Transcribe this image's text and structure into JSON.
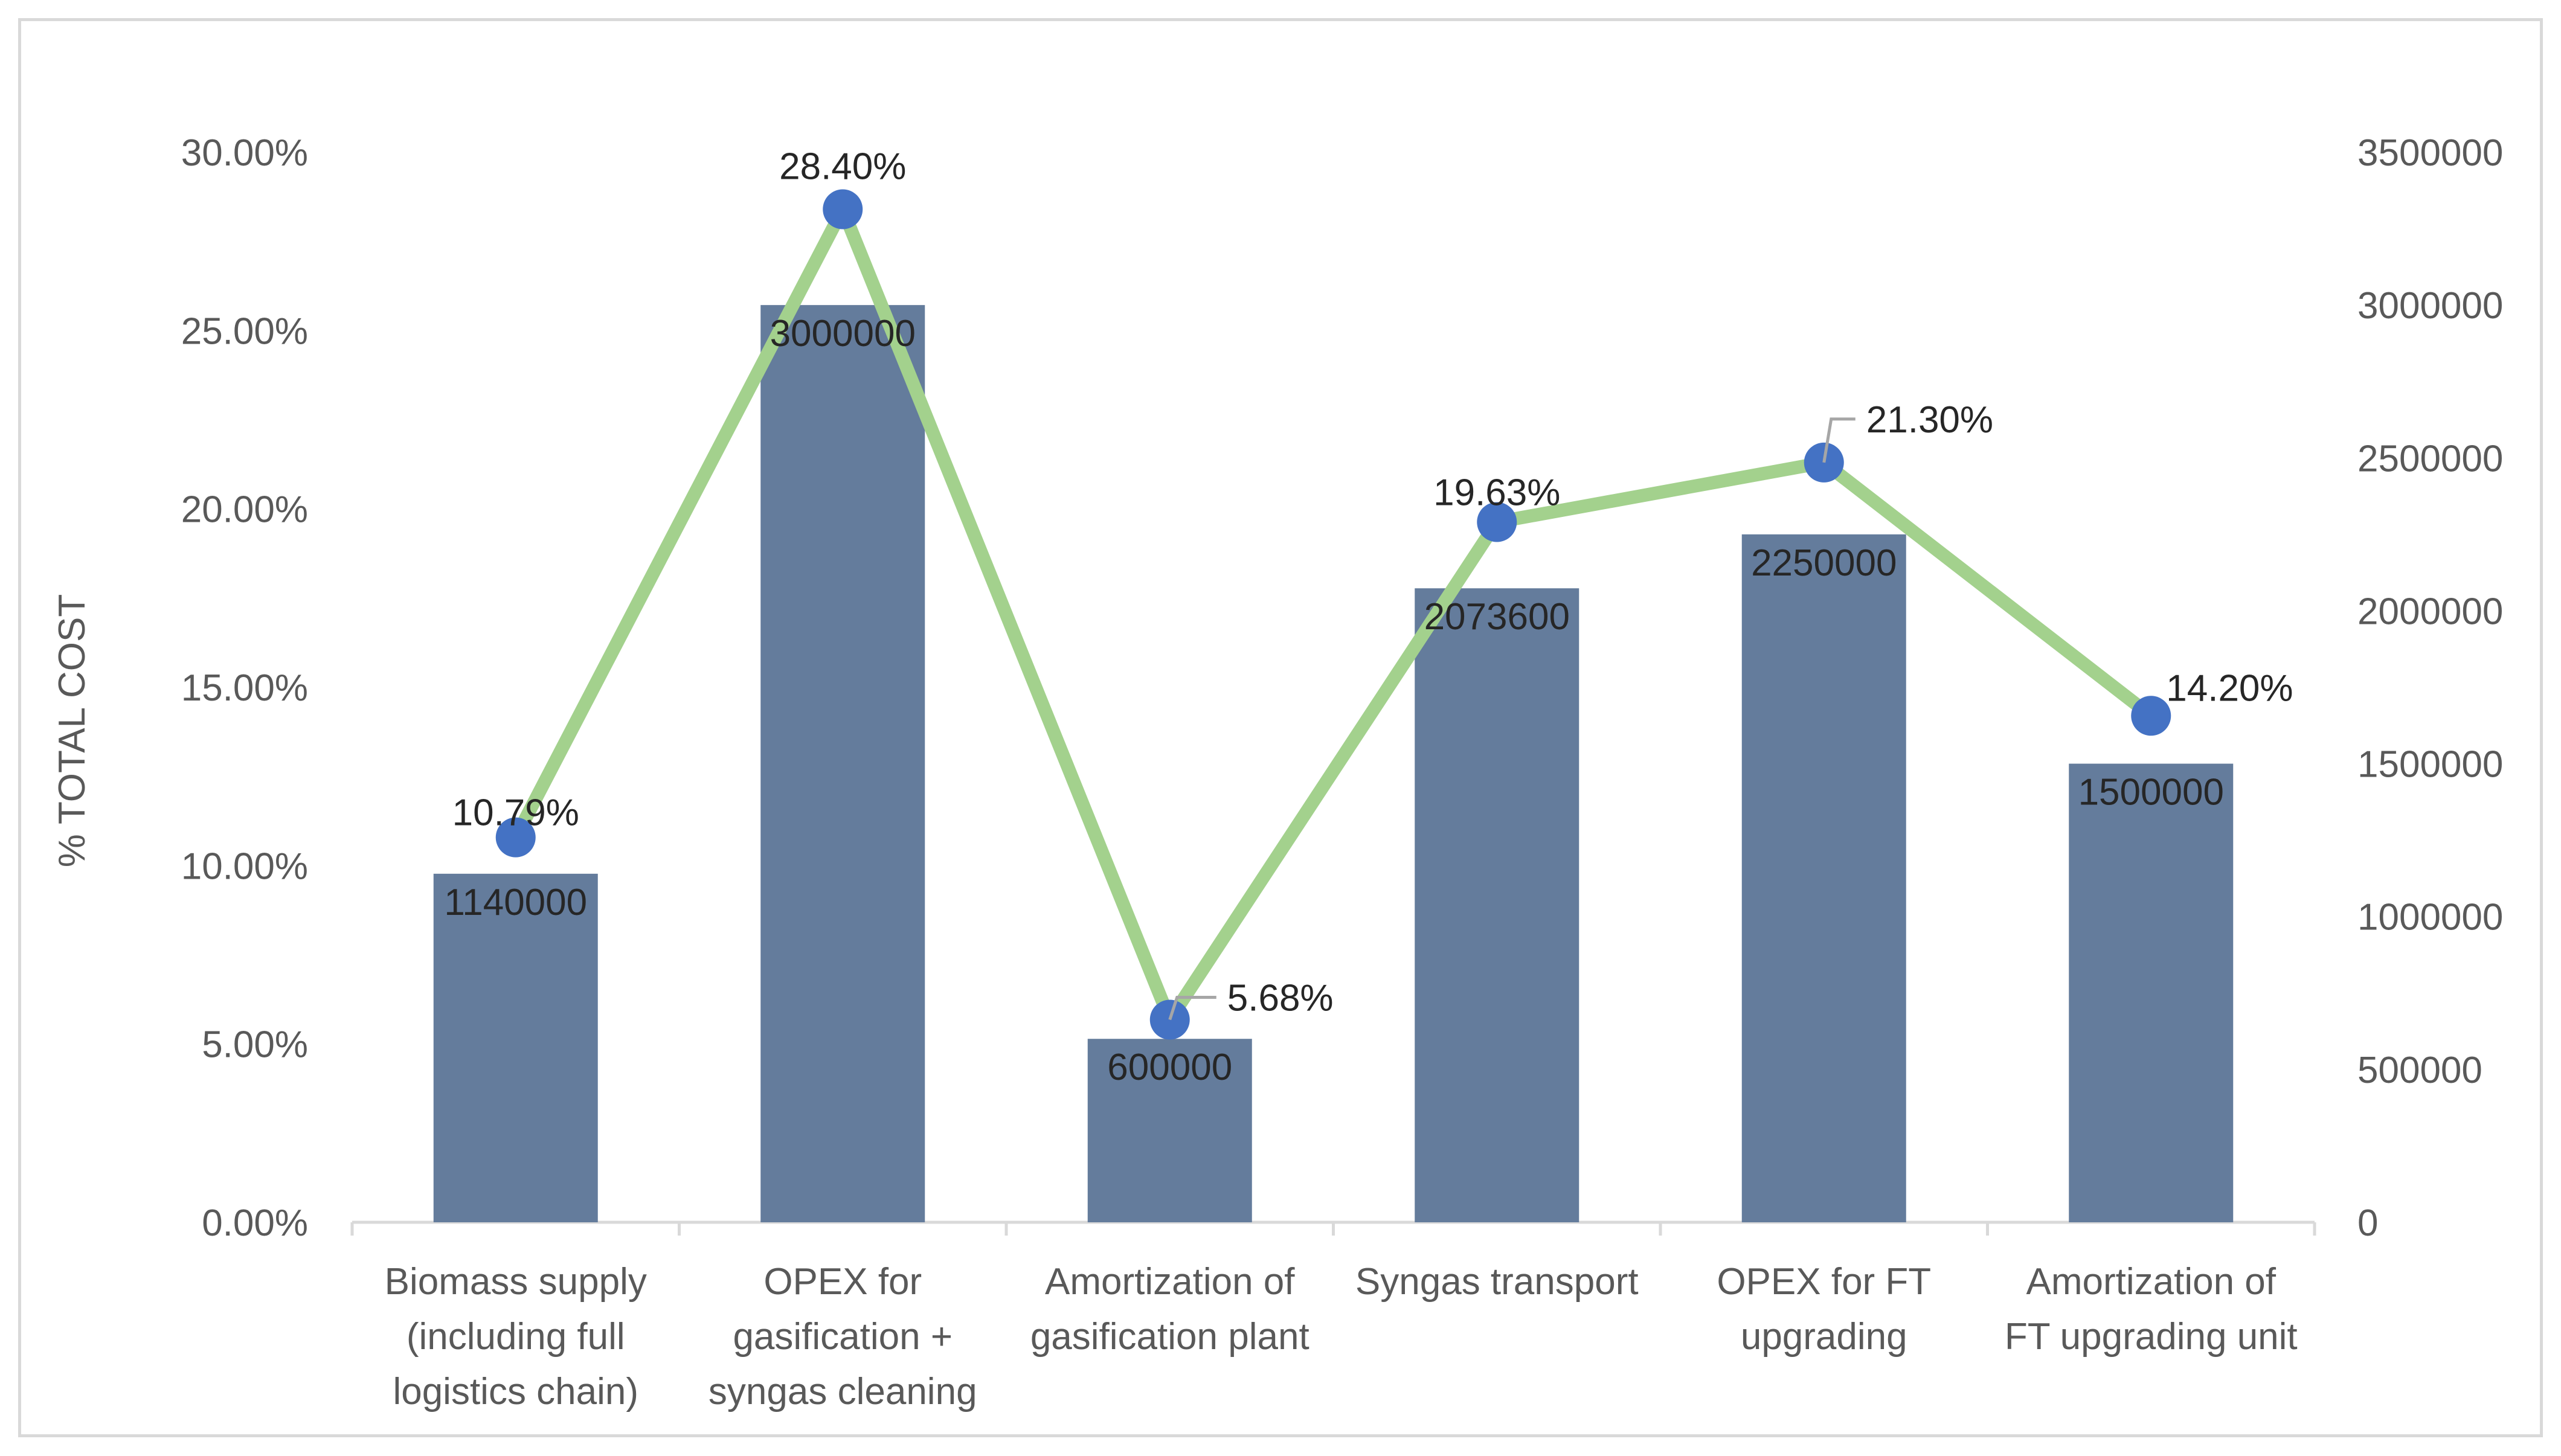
{
  "chart_data": {
    "type": "bar+line",
    "title": "",
    "ylabel": "% TOTAL COST",
    "y2label": "",
    "categories": [
      [
        "Biomass supply",
        "(including full",
        "logistics chain)"
      ],
      [
        "OPEX for",
        "gasification +",
        "syngas cleaning"
      ],
      [
        "Amortization of",
        "gasification plant"
      ],
      [
        "Syngas transport"
      ],
      [
        "OPEX for FT",
        "upgrading"
      ],
      [
        "Amortization of",
        "FT upgrading unit"
      ]
    ],
    "series": [
      {
        "name": "Cost",
        "type": "bar",
        "axis": "secondary",
        "color": "#647c9c",
        "values": [
          1140000,
          3000000,
          600000,
          2073600,
          2250000,
          1500000
        ],
        "labels": [
          "1140000",
          "3000000",
          "600000",
          "2073600",
          "2250000",
          "1500000"
        ]
      },
      {
        "name": "% Total cost",
        "type": "line",
        "axis": "primary",
        "color": "#a3d18d",
        "marker_color": "#4472c4",
        "values": [
          10.79,
          28.4,
          5.68,
          19.63,
          21.3,
          14.2
        ],
        "labels": [
          "10.79%",
          "28.40%",
          "5.68%",
          "19.63%",
          "21.30%",
          "14.20%"
        ]
      }
    ],
    "ylim": [
      0,
      30
    ],
    "yticks": [
      0,
      5,
      10,
      15,
      20,
      25,
      30
    ],
    "ytick_labels": [
      "0.00%",
      "5.00%",
      "10.00%",
      "15.00%",
      "20.00%",
      "25.00%",
      "30.00%"
    ],
    "y2lim": [
      0,
      3500000
    ],
    "y2ticks": [
      0,
      500000,
      1000000,
      1500000,
      2000000,
      2500000,
      3000000,
      3500000
    ],
    "y2tick_labels": [
      "0",
      "500000",
      "1000000",
      "1500000",
      "2000000",
      "2500000",
      "3000000",
      "3500000"
    ],
    "grid": false,
    "legend": "none"
  }
}
